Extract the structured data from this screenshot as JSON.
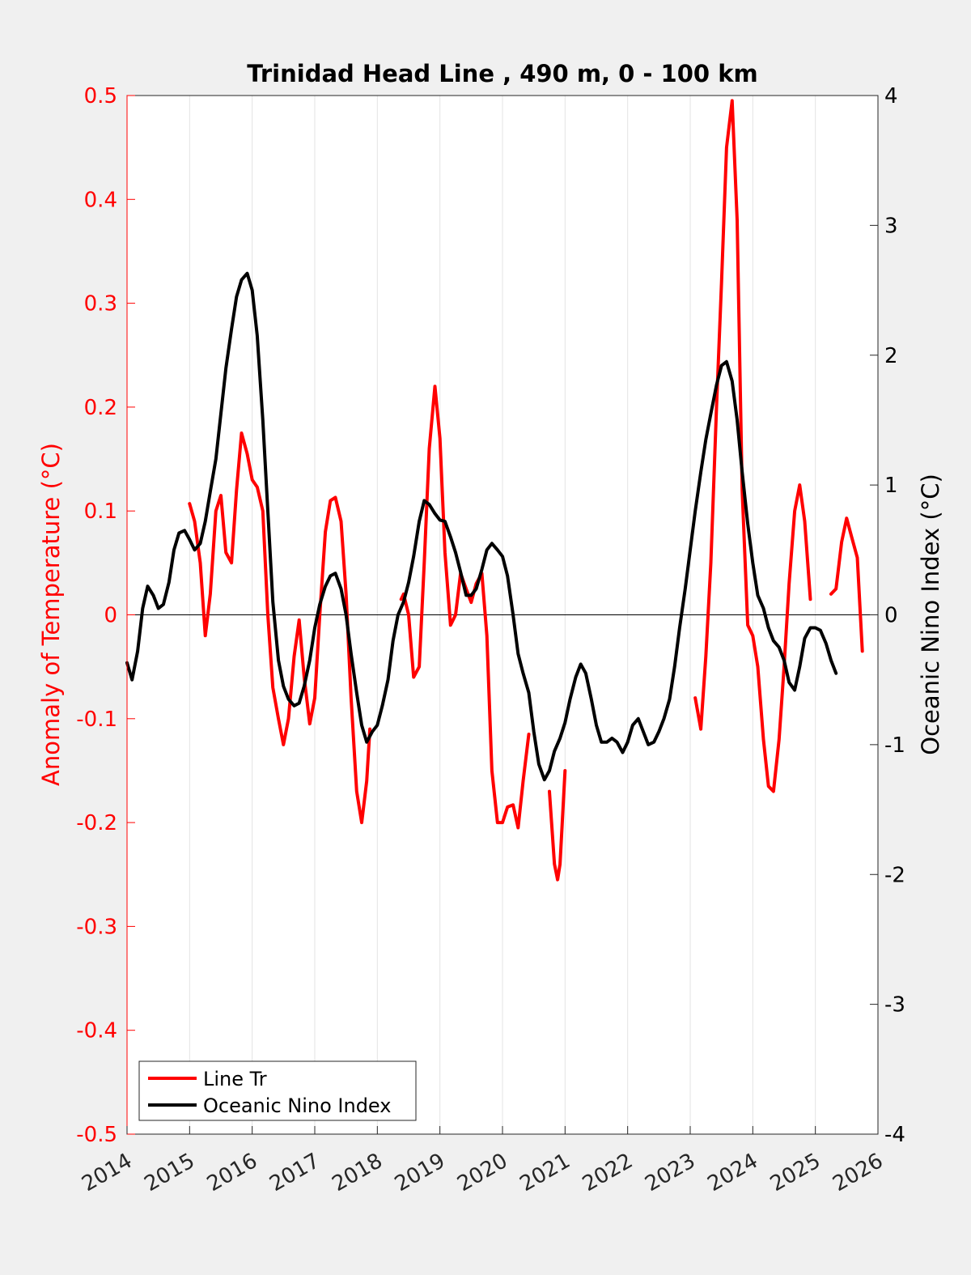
{
  "chart_data": {
    "type": "line",
    "title": "Trinidad Head Line , 490 m, 0 - 100 km",
    "xlabel": "",
    "ylabel_left": "Anomaly of Temperature (°C)",
    "ylabel_right": "Oceanic Nino Index (°C)",
    "xlim": [
      2014,
      2026
    ],
    "ylim_left": [
      -0.5,
      0.5
    ],
    "ylim_right": [
      -4,
      4
    ],
    "x_ticks": [
      "2014",
      "2015",
      "2016",
      "2017",
      "2018",
      "2019",
      "2020",
      "2021",
      "2022",
      "2023",
      "2024",
      "2025",
      "2026"
    ],
    "y_ticks_left": [
      "0.5",
      "0.4",
      "0.3",
      "0.2",
      "0.1",
      "0",
      "-0.1",
      "-0.2",
      "-0.3",
      "-0.4",
      "-0.5"
    ],
    "y_ticks_right": [
      "4",
      "3",
      "2",
      "1",
      "0",
      "-1",
      "-2",
      "-3",
      "-4"
    ],
    "grid": "vertical",
    "legend_position": "bottom-left",
    "colors": {
      "left_axis": "#ff0000",
      "line_tr": "#ff0000",
      "oni": "#000000"
    },
    "series": [
      {
        "name": "Line Tr",
        "axis": "left",
        "segments": [
          [
            [
              2015.0,
              0.107
            ],
            [
              2015.08,
              0.09
            ],
            [
              2015.17,
              0.05
            ],
            [
              2015.25,
              -0.02
            ],
            [
              2015.33,
              0.02
            ],
            [
              2015.42,
              0.1
            ],
            [
              2015.5,
              0.115
            ],
            [
              2015.58,
              0.06
            ],
            [
              2015.67,
              0.05
            ],
            [
              2015.75,
              0.12
            ],
            [
              2015.83,
              0.175
            ],
            [
              2015.92,
              0.155
            ],
            [
              2016.0,
              0.13
            ],
            [
              2016.08,
              0.123
            ],
            [
              2016.17,
              0.1
            ],
            [
              2016.25,
              0.0
            ],
            [
              2016.33,
              -0.07
            ],
            [
              2016.42,
              -0.1
            ],
            [
              2016.5,
              -0.125
            ],
            [
              2016.58,
              -0.1
            ],
            [
              2016.67,
              -0.04
            ],
            [
              2016.75,
              -0.005
            ],
            [
              2016.83,
              -0.06
            ],
            [
              2016.92,
              -0.105
            ],
            [
              2017.0,
              -0.08
            ],
            [
              2017.08,
              0.0
            ],
            [
              2017.17,
              0.08
            ],
            [
              2017.25,
              0.11
            ],
            [
              2017.33,
              0.113
            ],
            [
              2017.42,
              0.09
            ],
            [
              2017.5,
              0.02
            ],
            [
              2017.58,
              -0.08
            ],
            [
              2017.67,
              -0.17
            ],
            [
              2017.75,
              -0.2
            ],
            [
              2017.83,
              -0.16
            ],
            [
              2017.88,
              -0.11
            ]
          ],
          [
            [
              2018.38,
              0.015
            ],
            [
              2018.42,
              0.02
            ],
            [
              2018.5,
              0.0
            ],
            [
              2018.58,
              -0.06
            ],
            [
              2018.67,
              -0.05
            ],
            [
              2018.75,
              0.05
            ],
            [
              2018.83,
              0.16
            ],
            [
              2018.92,
              0.22
            ],
            [
              2019.0,
              0.17
            ],
            [
              2019.08,
              0.06
            ],
            [
              2019.17,
              -0.01
            ],
            [
              2019.25,
              0.0
            ],
            [
              2019.33,
              0.04
            ],
            [
              2019.42,
              0.025
            ],
            [
              2019.5,
              0.012
            ],
            [
              2019.58,
              0.03
            ],
            [
              2019.67,
              0.04
            ],
            [
              2019.75,
              -0.02
            ],
            [
              2019.83,
              -0.15
            ],
            [
              2019.92,
              -0.2
            ],
            [
              2020.0,
              -0.2
            ],
            [
              2020.08,
              -0.185
            ],
            [
              2020.17,
              -0.183
            ],
            [
              2020.25,
              -0.205
            ],
            [
              2020.33,
              -0.16
            ],
            [
              2020.42,
              -0.115
            ]
          ],
          [
            [
              2020.75,
              -0.17
            ],
            [
              2020.83,
              -0.24
            ],
            [
              2020.88,
              -0.255
            ],
            [
              2020.92,
              -0.24
            ],
            [
              2021.0,
              -0.15
            ]
          ],
          [
            [
              2023.08,
              -0.08
            ],
            [
              2023.17,
              -0.11
            ],
            [
              2023.25,
              -0.04
            ],
            [
              2023.33,
              0.05
            ],
            [
              2023.42,
              0.2
            ],
            [
              2023.5,
              0.32
            ],
            [
              2023.58,
              0.45
            ],
            [
              2023.67,
              0.495
            ],
            [
              2023.75,
              0.38
            ],
            [
              2023.83,
              0.12
            ],
            [
              2023.92,
              -0.01
            ],
            [
              2024.0,
              -0.02
            ],
            [
              2024.08,
              -0.05
            ],
            [
              2024.17,
              -0.12
            ],
            [
              2024.25,
              -0.165
            ],
            [
              2024.33,
              -0.17
            ],
            [
              2024.42,
              -0.12
            ],
            [
              2024.5,
              -0.05
            ],
            [
              2024.58,
              0.03
            ],
            [
              2024.67,
              0.1
            ],
            [
              2024.75,
              0.125
            ],
            [
              2024.83,
              0.09
            ],
            [
              2024.92,
              0.015
            ]
          ],
          [
            [
              2025.25,
              0.02
            ],
            [
              2025.33,
              0.025
            ],
            [
              2025.42,
              0.07
            ],
            [
              2025.5,
              0.093
            ],
            [
              2025.58,
              0.075
            ],
            [
              2025.67,
              0.055
            ],
            [
              2025.75,
              -0.035
            ]
          ]
        ]
      },
      {
        "name": "Oceanic Nino Index",
        "axis": "right",
        "segments": [
          [
            [
              2014.0,
              -0.37
            ],
            [
              2014.08,
              -0.5
            ],
            [
              2014.17,
              -0.28
            ],
            [
              2014.25,
              0.05
            ],
            [
              2014.33,
              0.22
            ],
            [
              2014.42,
              0.15
            ],
            [
              2014.5,
              0.05
            ],
            [
              2014.58,
              0.08
            ],
            [
              2014.67,
              0.25
            ],
            [
              2014.75,
              0.5
            ],
            [
              2014.83,
              0.63
            ],
            [
              2014.92,
              0.65
            ],
            [
              2015.0,
              0.58
            ],
            [
              2015.08,
              0.5
            ],
            [
              2015.17,
              0.55
            ],
            [
              2015.25,
              0.72
            ],
            [
              2015.33,
              0.95
            ],
            [
              2015.42,
              1.2
            ],
            [
              2015.5,
              1.55
            ],
            [
              2015.58,
              1.9
            ],
            [
              2015.67,
              2.2
            ],
            [
              2015.75,
              2.45
            ],
            [
              2015.83,
              2.58
            ],
            [
              2015.92,
              2.63
            ],
            [
              2016.0,
              2.5
            ],
            [
              2016.08,
              2.15
            ],
            [
              2016.17,
              1.5
            ],
            [
              2016.25,
              0.8
            ],
            [
              2016.33,
              0.1
            ],
            [
              2016.42,
              -0.35
            ],
            [
              2016.5,
              -0.55
            ],
            [
              2016.58,
              -0.65
            ],
            [
              2016.67,
              -0.7
            ],
            [
              2016.75,
              -0.68
            ],
            [
              2016.83,
              -0.55
            ],
            [
              2016.92,
              -0.35
            ],
            [
              2017.0,
              -0.1
            ],
            [
              2017.08,
              0.08
            ],
            [
              2017.17,
              0.22
            ],
            [
              2017.25,
              0.3
            ],
            [
              2017.33,
              0.32
            ],
            [
              2017.42,
              0.2
            ],
            [
              2017.5,
              0.0
            ],
            [
              2017.58,
              -0.3
            ],
            [
              2017.67,
              -0.6
            ],
            [
              2017.75,
              -0.85
            ],
            [
              2017.83,
              -0.98
            ],
            [
              2017.92,
              -0.9
            ],
            [
              2018.0,
              -0.85
            ],
            [
              2018.08,
              -0.7
            ],
            [
              2018.17,
              -0.5
            ],
            [
              2018.25,
              -0.2
            ],
            [
              2018.33,
              0.0
            ],
            [
              2018.42,
              0.1
            ],
            [
              2018.5,
              0.25
            ],
            [
              2018.58,
              0.45
            ],
            [
              2018.67,
              0.72
            ],
            [
              2018.75,
              0.88
            ],
            [
              2018.83,
              0.85
            ],
            [
              2018.92,
              0.78
            ],
            [
              2019.0,
              0.73
            ],
            [
              2019.08,
              0.72
            ],
            [
              2019.17,
              0.6
            ],
            [
              2019.25,
              0.48
            ],
            [
              2019.33,
              0.33
            ],
            [
              2019.42,
              0.15
            ],
            [
              2019.5,
              0.15
            ],
            [
              2019.58,
              0.2
            ],
            [
              2019.67,
              0.35
            ],
            [
              2019.75,
              0.5
            ],
            [
              2019.83,
              0.55
            ],
            [
              2019.92,
              0.5
            ],
            [
              2020.0,
              0.45
            ],
            [
              2020.08,
              0.3
            ],
            [
              2020.17,
              0.0
            ],
            [
              2020.25,
              -0.3
            ],
            [
              2020.33,
              -0.45
            ],
            [
              2020.42,
              -0.6
            ],
            [
              2020.5,
              -0.9
            ],
            [
              2020.58,
              -1.15
            ],
            [
              2020.67,
              -1.27
            ],
            [
              2020.75,
              -1.2
            ],
            [
              2020.83,
              -1.05
            ],
            [
              2020.92,
              -0.95
            ],
            [
              2021.0,
              -0.83
            ],
            [
              2021.08,
              -0.65
            ],
            [
              2021.17,
              -0.48
            ],
            [
              2021.25,
              -0.38
            ],
            [
              2021.33,
              -0.45
            ],
            [
              2021.42,
              -0.65
            ],
            [
              2021.5,
              -0.85
            ],
            [
              2021.58,
              -0.98
            ],
            [
              2021.67,
              -0.98
            ],
            [
              2021.75,
              -0.95
            ],
            [
              2021.83,
              -0.98
            ],
            [
              2021.92,
              -1.06
            ],
            [
              2022.0,
              -0.98
            ],
            [
              2022.08,
              -0.85
            ],
            [
              2022.17,
              -0.8
            ],
            [
              2022.25,
              -0.9
            ],
            [
              2022.33,
              -1.0
            ],
            [
              2022.42,
              -0.98
            ],
            [
              2022.5,
              -0.9
            ],
            [
              2022.58,
              -0.8
            ],
            [
              2022.67,
              -0.65
            ],
            [
              2022.75,
              -0.4
            ],
            [
              2022.83,
              -0.1
            ],
            [
              2022.92,
              0.2
            ],
            [
              2023.0,
              0.5
            ],
            [
              2023.08,
              0.8
            ],
            [
              2023.17,
              1.1
            ],
            [
              2023.25,
              1.35
            ],
            [
              2023.33,
              1.55
            ],
            [
              2023.42,
              1.77
            ],
            [
              2023.5,
              1.92
            ],
            [
              2023.58,
              1.95
            ],
            [
              2023.67,
              1.8
            ],
            [
              2023.75,
              1.5
            ],
            [
              2023.83,
              1.1
            ],
            [
              2023.92,
              0.7
            ],
            [
              2024.0,
              0.4
            ],
            [
              2024.08,
              0.15
            ],
            [
              2024.17,
              0.05
            ],
            [
              2024.25,
              -0.1
            ],
            [
              2024.33,
              -0.2
            ],
            [
              2024.42,
              -0.25
            ],
            [
              2024.5,
              -0.35
            ],
            [
              2024.58,
              -0.52
            ],
            [
              2024.67,
              -0.58
            ],
            [
              2024.75,
              -0.4
            ],
            [
              2024.83,
              -0.18
            ],
            [
              2024.92,
              -0.1
            ],
            [
              2025.0,
              -0.1
            ],
            [
              2025.08,
              -0.12
            ],
            [
              2025.17,
              -0.22
            ],
            [
              2025.25,
              -0.35
            ],
            [
              2025.33,
              -0.45
            ]
          ]
        ]
      }
    ]
  }
}
